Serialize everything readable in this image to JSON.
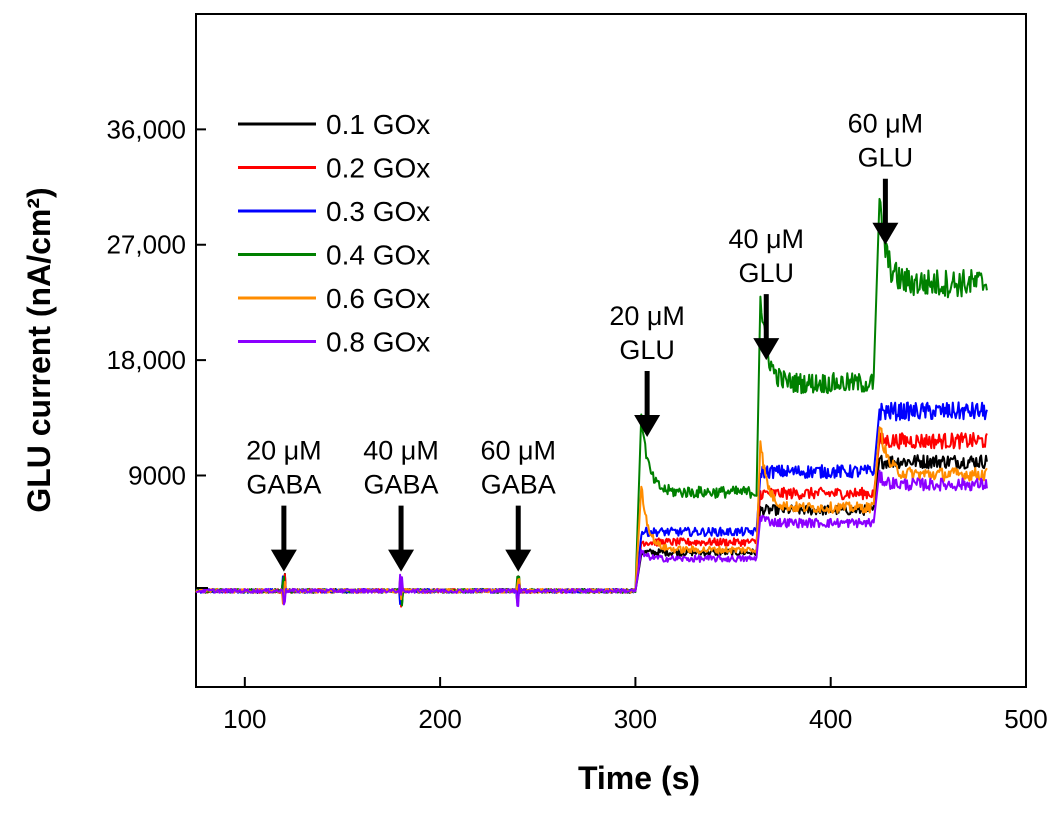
{
  "chart_data": {
    "type": "line",
    "title": "",
    "xlabel": "Time (s)",
    "ylabel": "GLU current (nA/cm²)",
    "xlim": [
      75,
      500
    ],
    "ylim": [
      -7500,
      45000
    ],
    "xticks": [
      100,
      200,
      300,
      400,
      500
    ],
    "xtick_labels": [
      "100",
      "200",
      "300",
      "400",
      "500"
    ],
    "yticks": [
      9000,
      18000,
      27000,
      36000
    ],
    "ytick_labels": [
      "9000",
      "18,000",
      "27,000",
      "36,000"
    ],
    "legend_position": "top-left",
    "grid": false,
    "series": [
      {
        "name": "0.1 GOx",
        "color": "#000000",
        "levels": [
          [
            75,
            300,
            0
          ],
          [
            303,
            362,
            3000
          ],
          [
            364,
            422,
            6300
          ],
          [
            425,
            480,
            10100
          ]
        ],
        "spike": 1.0
      },
      {
        "name": "0.2 GOx",
        "color": "#ff0000",
        "levels": [
          [
            75,
            300,
            0
          ],
          [
            303,
            362,
            3800
          ],
          [
            364,
            422,
            7600
          ],
          [
            425,
            480,
            11700
          ]
        ],
        "spike": 1.0
      },
      {
        "name": "0.3 GOx",
        "color": "#0000ff",
        "levels": [
          [
            75,
            300,
            0
          ],
          [
            303,
            362,
            4600
          ],
          [
            364,
            422,
            9300
          ],
          [
            425,
            480,
            14000
          ]
        ],
        "spike": 1.0
      },
      {
        "name": "0.4 GOx",
        "color": "#008000",
        "levels": [
          [
            75,
            300,
            0
          ],
          [
            303,
            362,
            7700
          ],
          [
            364,
            422,
            16200
          ],
          [
            425,
            480,
            24000
          ]
        ],
        "spike": 1.8
      },
      {
        "name": "0.6 GOx",
        "color": "#ff8c00",
        "levels": [
          [
            75,
            300,
            0
          ],
          [
            303,
            362,
            3200
          ],
          [
            364,
            422,
            6500
          ],
          [
            425,
            480,
            9100
          ]
        ],
        "spike": 2.6
      },
      {
        "name": "0.8 GOx",
        "color": "#8b00ff",
        "levels": [
          [
            75,
            300,
            0
          ],
          [
            303,
            362,
            2500
          ],
          [
            364,
            422,
            5300
          ],
          [
            425,
            480,
            8300
          ]
        ],
        "spike": 1.2
      }
    ],
    "annotations": [
      {
        "line1": "20 μM",
        "line2": "GABA",
        "x": 120,
        "arrow_tip_y": 1500
      },
      {
        "line1": "40 μM",
        "line2": "GABA",
        "x": 180,
        "arrow_tip_y": 1500
      },
      {
        "line1": "60 μM",
        "line2": "GABA",
        "x": 240,
        "arrow_tip_y": 1500
      },
      {
        "line1": "20 μM",
        "line2": "GLU",
        "x": 306,
        "arrow_tip_y": 12000
      },
      {
        "line1": "40 μM",
        "line2": "GLU",
        "x": 367,
        "arrow_tip_y": 18000
      },
      {
        "line1": "60 μM",
        "line2": "GLU",
        "x": 428,
        "arrow_tip_y": 27000
      }
    ]
  }
}
